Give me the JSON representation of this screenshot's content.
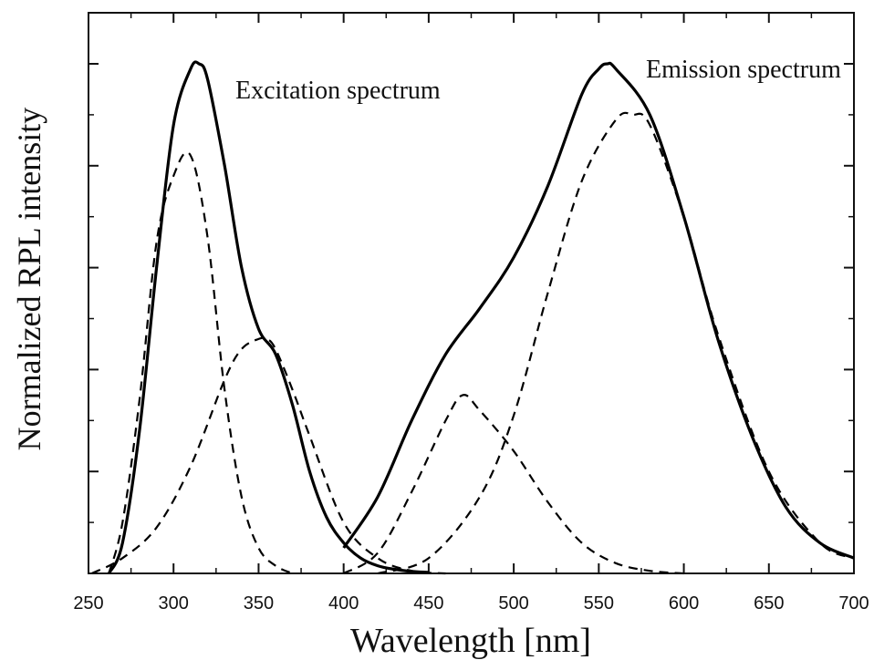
{
  "chart_data": {
    "type": "line",
    "title": "",
    "xlabel": "Wavelength [nm]",
    "ylabel": "Normalized RPL intensity",
    "xlim": [
      250,
      700
    ],
    "ylim": [
      0,
      1
    ],
    "xticks": [
      250,
      300,
      350,
      400,
      450,
      500,
      550,
      600,
      650,
      700
    ],
    "yticks_labeled": false,
    "minor_ticks": true,
    "grid": false,
    "legend": "none",
    "annotations": [
      "Excitation spectrum",
      "Emission spectrum"
    ],
    "series": [
      {
        "style": "solid",
        "x": [
          262,
          270,
          280,
          290,
          300,
          310,
          315,
          320,
          330,
          340,
          350,
          360,
          370,
          380,
          390,
          400,
          410,
          420,
          430,
          440,
          450
        ],
        "y": [
          0.0,
          0.06,
          0.28,
          0.6,
          0.88,
          0.99,
          1.0,
          0.97,
          0.8,
          0.6,
          0.48,
          0.43,
          0.33,
          0.2,
          0.11,
          0.06,
          0.03,
          0.015,
          0.008,
          0.004,
          0.002
        ]
      },
      {
        "style": "solid",
        "x": [
          400,
          420,
          440,
          460,
          480,
          500,
          520,
          540,
          550,
          555,
          560,
          580,
          600,
          620,
          640,
          660,
          680,
          700
        ],
        "y": [
          0.05,
          0.15,
          0.3,
          0.43,
          0.52,
          0.62,
          0.76,
          0.94,
          0.99,
          1.0,
          0.99,
          0.9,
          0.7,
          0.46,
          0.27,
          0.13,
          0.06,
          0.03
        ]
      },
      {
        "style": "dashed",
        "x": [
          262,
          270,
          280,
          290,
          300,
          310,
          320,
          330,
          340,
          350,
          360,
          370
        ],
        "y": [
          0.0,
          0.1,
          0.34,
          0.65,
          0.78,
          0.82,
          0.66,
          0.36,
          0.15,
          0.05,
          0.015,
          0.0
        ]
      },
      {
        "style": "dashed",
        "x": [
          252,
          270,
          290,
          310,
          330,
          340,
          350,
          355,
          360,
          370,
          380,
          400,
          420,
          440,
          460
        ],
        "y": [
          0.0,
          0.03,
          0.09,
          0.21,
          0.38,
          0.44,
          0.46,
          0.46,
          0.44,
          0.36,
          0.27,
          0.1,
          0.03,
          0.005,
          0.0
        ]
      },
      {
        "style": "dashed",
        "x": [
          400,
          420,
          440,
          460,
          470,
          480,
          500,
          520,
          540,
          560,
          580,
          600
        ],
        "y": [
          0.0,
          0.04,
          0.16,
          0.3,
          0.35,
          0.32,
          0.24,
          0.14,
          0.06,
          0.02,
          0.005,
          0.0
        ]
      },
      {
        "style": "dashed",
        "x": [
          420,
          450,
          480,
          500,
          520,
          540,
          560,
          570,
          580,
          600,
          620,
          650,
          680,
          700
        ],
        "y": [
          0.0,
          0.03,
          0.15,
          0.31,
          0.55,
          0.77,
          0.89,
          0.9,
          0.88,
          0.7,
          0.47,
          0.2,
          0.06,
          0.03
        ]
      }
    ]
  }
}
